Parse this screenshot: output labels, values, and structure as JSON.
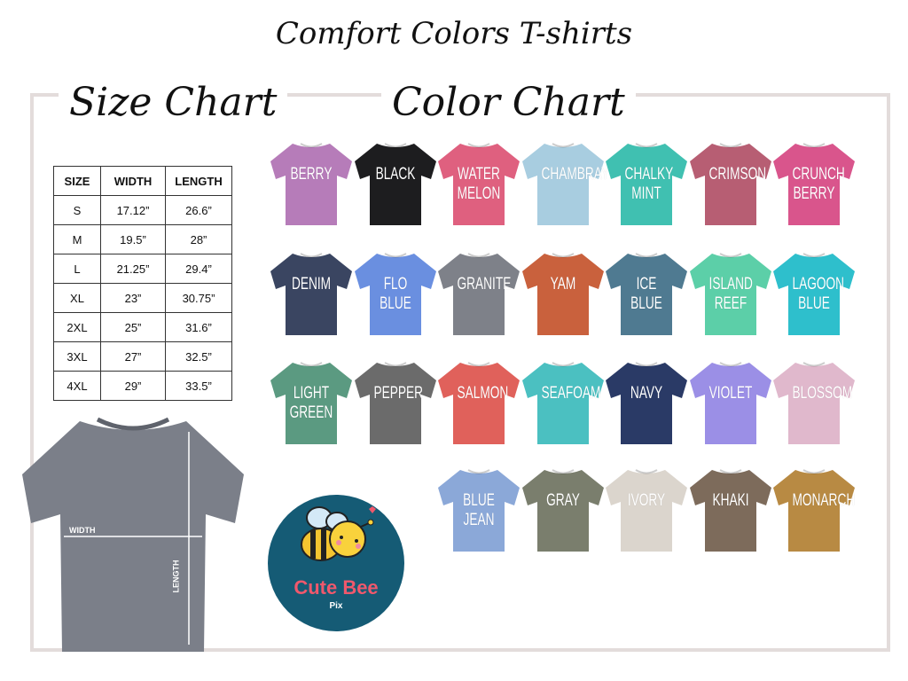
{
  "title": "Comfort Colors T-shirts",
  "size_chart": {
    "heading": "Size Chart",
    "headers": [
      "SIZE",
      "WIDTH",
      "LENGTH"
    ],
    "rows": [
      [
        "S",
        "17.12”",
        "26.6”"
      ],
      [
        "M",
        "19.5”",
        "28”"
      ],
      [
        "L",
        "21.25”",
        "29.4”"
      ],
      [
        "XL",
        "23”",
        "30.75”"
      ],
      [
        "2XL",
        "25”",
        "31.6”"
      ],
      [
        "3XL",
        "27”",
        "32.5”"
      ],
      [
        "4XL",
        "29”",
        "33.5”"
      ]
    ],
    "width_label": "WIDTH",
    "length_label": "LENGTH",
    "diagram_color": "#7b7f89"
  },
  "color_chart": {
    "heading": "Color Chart",
    "colors": [
      {
        "name": "BERRY",
        "hex": "#b67cb9"
      },
      {
        "name": "BLACK",
        "hex": "#1d1d1f"
      },
      {
        "name": "WATER\nMELON",
        "hex": "#df607f"
      },
      {
        "name": "CHAMBRAY",
        "hex": "#a8cde0"
      },
      {
        "name": "CHALKY\nMINT",
        "hex": "#40c0b1"
      },
      {
        "name": "CRIMSON",
        "hex": "#b75e73"
      },
      {
        "name": "CRUNCH\nBERRY",
        "hex": "#d9558c"
      },
      {
        "name": "DENIM",
        "hex": "#3a4561"
      },
      {
        "name": "FLO\nBLUE",
        "hex": "#6a8fe0"
      },
      {
        "name": "GRANITE",
        "hex": "#7e8189"
      },
      {
        "name": "YAM",
        "hex": "#c9613d"
      },
      {
        "name": "ICE\nBLUE",
        "hex": "#4f7a91"
      },
      {
        "name": "ISLAND\nREEF",
        "hex": "#5ccfa8"
      },
      {
        "name": "LAGOON\nBLUE",
        "hex": "#2ebfcc"
      },
      {
        "name": "LIGHT\nGREEN",
        "hex": "#5b9a81"
      },
      {
        "name": "PEPPER",
        "hex": "#6b6b6b"
      },
      {
        "name": "SALMON",
        "hex": "#e0615b"
      },
      {
        "name": "SEAFOAM",
        "hex": "#4bc0c1"
      },
      {
        "name": "NAVY",
        "hex": "#2a3a66"
      },
      {
        "name": "VIOLET",
        "hex": "#9b8fe6"
      },
      {
        "name": "BLOSSOM",
        "hex": "#e0b8cc"
      },
      {
        "name": "BLUE\nJEAN",
        "hex": "#8ba8d8"
      },
      {
        "name": "GRAY",
        "hex": "#7a7e6d"
      },
      {
        "name": "IVORY",
        "hex": "#dbd5cd"
      },
      {
        "name": "KHAKI",
        "hex": "#7d6b5b"
      },
      {
        "name": "MONARCH",
        "hex": "#b88a43"
      }
    ]
  },
  "logo": {
    "name": "Cute Bee",
    "sub": "Pix",
    "bg": "#155b75",
    "text_color": "#f0586c"
  }
}
